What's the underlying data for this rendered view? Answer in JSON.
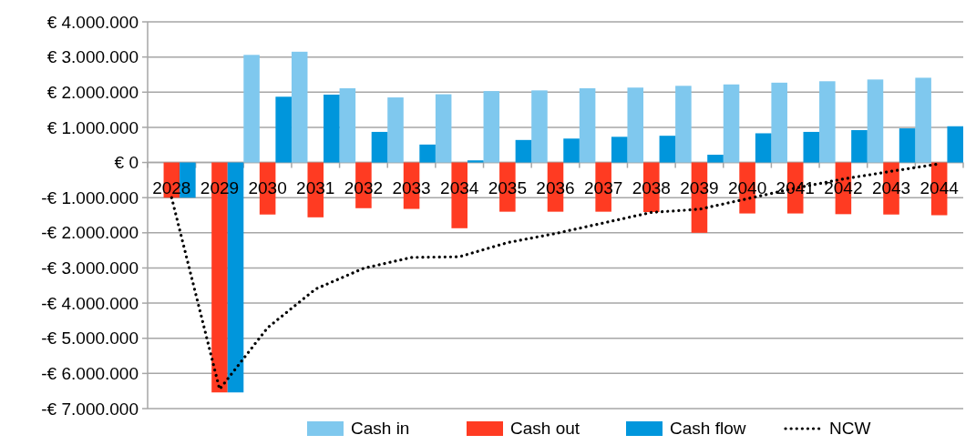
{
  "chart_data": {
    "type": "bar",
    "categories": [
      "2028",
      "2029",
      "2030",
      "2031",
      "2032",
      "2033",
      "2034",
      "2035",
      "2036",
      "2037",
      "2038",
      "2039",
      "2040",
      "2041",
      "2042",
      "2043",
      "2044"
    ],
    "series": [
      {
        "name": "Cash in",
        "color": "#7fc8ee",
        "values": [
          0,
          0,
          3060000,
          3150000,
          2110000,
          1850000,
          1940000,
          2030000,
          2050000,
          2110000,
          2130000,
          2180000,
          2220000,
          2270000,
          2310000,
          2360000,
          2410000
        ]
      },
      {
        "name": "Cash out",
        "color": "#ff3b22",
        "values": [
          -1000000,
          -6540000,
          -1480000,
          -1560000,
          -1300000,
          -1320000,
          -1870000,
          -1400000,
          -1400000,
          -1400000,
          -1410000,
          -2000000,
          -1450000,
          -1450000,
          -1470000,
          -1480000,
          -1500000
        ]
      },
      {
        "name": "Cash flow",
        "color": "#0096dc",
        "values": [
          -1000000,
          -6540000,
          1870000,
          1930000,
          870000,
          510000,
          60000,
          640000,
          680000,
          730000,
          760000,
          220000,
          830000,
          870000,
          920000,
          970000,
          1030000
        ]
      },
      {
        "name": "NCW",
        "type": "line",
        "color": "#000000",
        "line_style": "dotted",
        "values": [
          -1000000,
          -6450000,
          -4700000,
          -3600000,
          -3010000,
          -2700000,
          -2680000,
          -2280000,
          -2020000,
          -1720000,
          -1420000,
          -1330000,
          -1030000,
          -730000,
          -470000,
          -250000,
          -40000
        ]
      }
    ],
    "ylim": [
      -7000000,
      4000000
    ],
    "yticks": [
      {
        "value": -7000000,
        "label": "-€ 7.000.000"
      },
      {
        "value": -6000000,
        "label": "-€ 6.000.000"
      },
      {
        "value": -5000000,
        "label": "-€ 5.000.000"
      },
      {
        "value": -4000000,
        "label": "-€ 4.000.000"
      },
      {
        "value": -3000000,
        "label": "-€ 3.000.000"
      },
      {
        "value": -2000000,
        "label": "-€ 2.000.000"
      },
      {
        "value": -1000000,
        "label": "-€ 1.000.000"
      },
      {
        "value": 0,
        "label": "€ 0"
      },
      {
        "value": 1000000,
        "label": "€ 1.000.000"
      },
      {
        "value": 2000000,
        "label": "€ 2.000.000"
      },
      {
        "value": 3000000,
        "label": "€ 3.000.000"
      },
      {
        "value": 4000000,
        "label": "€ 4.000.000"
      }
    ],
    "grid": "y",
    "legend": "bottom"
  }
}
